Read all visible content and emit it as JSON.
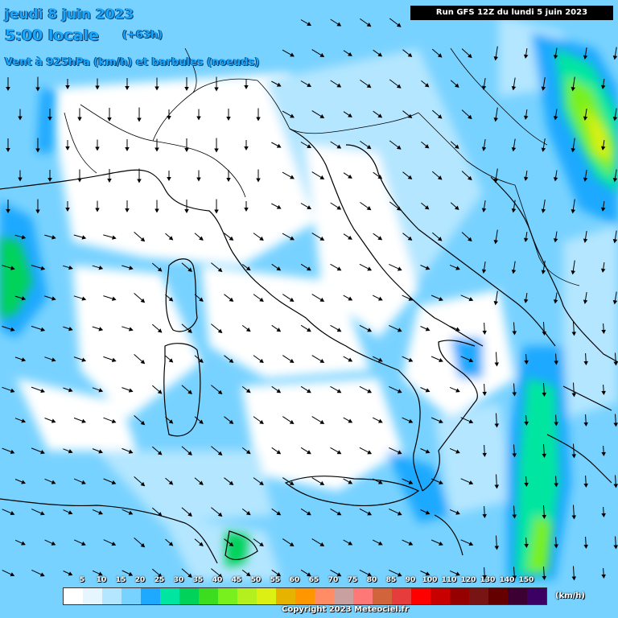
{
  "header": {
    "date": "jeudi 8 juin 2023",
    "local_time": "5:00 locale",
    "lead": "(+63h)",
    "field": "Vent à 925hPa (km/h) et barbules (noeuds)",
    "run": "Run GFS 12Z du lundi 5 juin 2023"
  },
  "legend": {
    "unit": "(km/h)",
    "ticks": [
      "5",
      "10",
      "15",
      "20",
      "25",
      "30",
      "35",
      "40",
      "45",
      "50",
      "55",
      "60",
      "65",
      "70",
      "75",
      "80",
      "85",
      "90",
      "100",
      "110",
      "120",
      "130",
      "140",
      "150"
    ],
    "colors": [
      "#ffffff",
      "#e6f6ff",
      "#b4e6ff",
      "#78d2ff",
      "#1ea9ff",
      "#00e6a0",
      "#00d25a",
      "#3cdc1e",
      "#78f01e",
      "#b4f01e",
      "#dcf014",
      "#e6b400",
      "#ff9600",
      "#ff8c64",
      "#c8a0a0",
      "#ff7878",
      "#d2643c",
      "#e63c3c",
      "#ff0000",
      "#c80000",
      "#960000",
      "#781414",
      "#640000",
      "#3c0032",
      "#3c0064"
    ]
  },
  "footer": {
    "copyright": "Copyright 2023 Meteociel.fr"
  },
  "colors": {
    "title": "#18a8ff",
    "water_light": "#b4e6ff",
    "water_mid": "#78d2ff",
    "water_strong": "#1ea9ff",
    "wind_high": "#00e6a0",
    "wind_green": "#3cdc1e",
    "wind_yellow": "#dcf014"
  }
}
